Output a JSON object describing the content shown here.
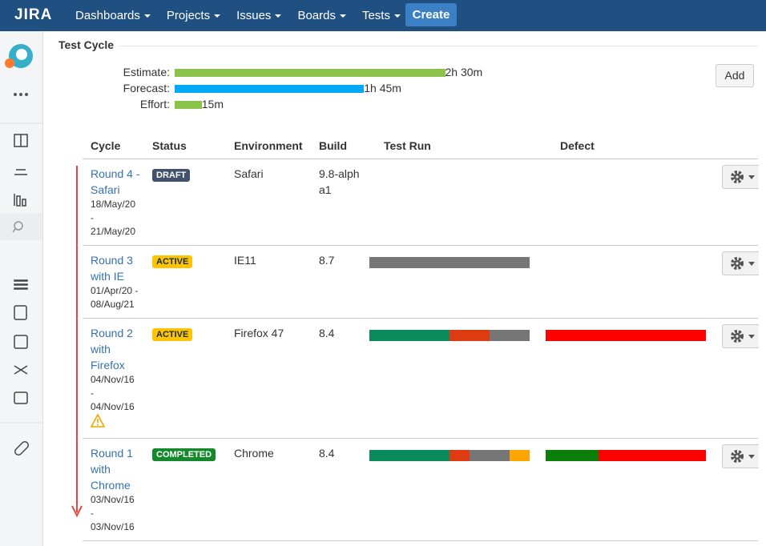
{
  "header": {
    "logo": "JIRA",
    "nav": [
      "Dashboards",
      "Projects",
      "Issues",
      "Boards",
      "Tests"
    ],
    "create": "Create"
  },
  "section": {
    "title": "Test Cycle",
    "add": "Add",
    "estimates": [
      {
        "label": "Estimate:",
        "minutes": 150,
        "text": "2h 30m",
        "color": "#8bc34a"
      },
      {
        "label": "Forecast:",
        "minutes": 105,
        "text": "1h 45m",
        "color": "#03a9f4"
      },
      {
        "label": "Effort:",
        "minutes": 15,
        "text": "15m",
        "color": "#8bc34a"
      }
    ]
  },
  "table": {
    "columns": [
      "Cycle",
      "Status",
      "Environment",
      "Build",
      "Test Run",
      "Defect"
    ],
    "rows": [
      {
        "name": "Round 4 - Safari",
        "dates": "18/May/20 - 21/May/20",
        "status": "DRAFT",
        "status_color": "#42526e",
        "status_text_color": "#ffffff",
        "environment": "Safari",
        "build": "9.8-alpha1",
        "warning": false,
        "test_run": [],
        "defect": []
      },
      {
        "name": "Round 3 with IE",
        "dates": "01/Apr/20 - 08/Aug/21",
        "status": "ACTIVE",
        "status_color": "#ffc400",
        "status_text_color": "#172b4d",
        "environment": "IE11",
        "build": "8.7",
        "warning": false,
        "test_run": [
          {
            "value": 100,
            "color": "#767676"
          }
        ],
        "defect": []
      },
      {
        "name": "Round 2 with Firefox",
        "dates": "04/Nov/16 - 04/Nov/16",
        "status": "ACTIVE",
        "status_color": "#ffc400",
        "status_text_color": "#172b4d",
        "environment": "Firefox 47",
        "build": "8.4",
        "warning": true,
        "test_run": [
          {
            "value": 50,
            "color": "#0b8a5e"
          },
          {
            "value": 25,
            "color": "#de3b12"
          },
          {
            "value": 25,
            "color": "#767676"
          }
        ],
        "defect": [
          {
            "value": 100,
            "color": "#ff0000"
          }
        ]
      },
      {
        "name": "Round 1 with Chrome",
        "dates": "03/Nov/16 - 03/Nov/16",
        "status": "COMPLETED",
        "status_color": "#14892c",
        "status_text_color": "#ffffff",
        "environment": "Chrome",
        "build": "8.4",
        "warning": false,
        "test_run": [
          {
            "value": 50,
            "color": "#0b8a5e"
          },
          {
            "value": 12.5,
            "color": "#de3b12"
          },
          {
            "value": 25,
            "color": "#767676"
          },
          {
            "value": 12.5,
            "color": "#ffa500"
          }
        ],
        "defect": [
          {
            "value": 33,
            "color": "#0a7f0a"
          },
          {
            "value": 67,
            "color": "#ff0000"
          }
        ]
      }
    ]
  }
}
